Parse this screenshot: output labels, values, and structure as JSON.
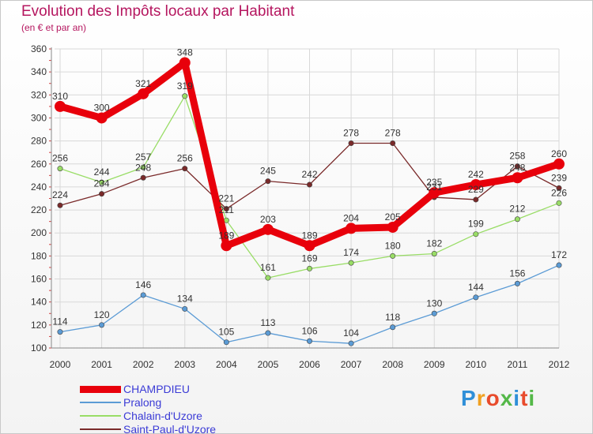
{
  "title": "Evolution des Impôts locaux par Habitant",
  "subtitle": "(en € et par an)",
  "logo": "Proxiti",
  "chart_data": {
    "type": "line",
    "title": "Evolution des Impôts locaux par Habitant",
    "subtitle": "(en € et par an)",
    "xlabel": "",
    "ylabel": "",
    "x": [
      "2000",
      "2001",
      "2002",
      "2003",
      "2004",
      "2005",
      "2006",
      "2007",
      "2008",
      "2009",
      "2010",
      "2011",
      "2012"
    ],
    "ylim": [
      100,
      360
    ],
    "yticks": [
      100,
      120,
      140,
      160,
      180,
      200,
      220,
      240,
      260,
      280,
      300,
      320,
      340,
      360
    ],
    "legend_position": "bottom-left",
    "series": [
      {
        "name": "CHAMPDIEU",
        "color": "#e8000b",
        "values": [
          310,
          300,
          321,
          348,
          189,
          203,
          189,
          204,
          205,
          235,
          242,
          248,
          260
        ]
      },
      {
        "name": "Pralong",
        "color": "#5b9bd5",
        "values": [
          114,
          120,
          146,
          134,
          105,
          113,
          106,
          104,
          118,
          130,
          144,
          156,
          172
        ]
      },
      {
        "name": "Chalain-d'Uzore",
        "color": "#99dd66",
        "values": [
          256,
          244,
          257,
          319,
          211,
          161,
          169,
          174,
          180,
          182,
          199,
          212,
          226
        ]
      },
      {
        "name": "Saint-Paul-d'Uzore",
        "color": "#7a2a2a",
        "values": [
          224,
          234,
          248,
          256,
          221,
          245,
          242,
          278,
          278,
          231,
          229,
          258,
          239
        ]
      }
    ]
  },
  "colors": {
    "title": "#b5165f",
    "axis_text": "#333333",
    "grid": "#d8d8d8",
    "legend_text": "#3b3bd6"
  }
}
